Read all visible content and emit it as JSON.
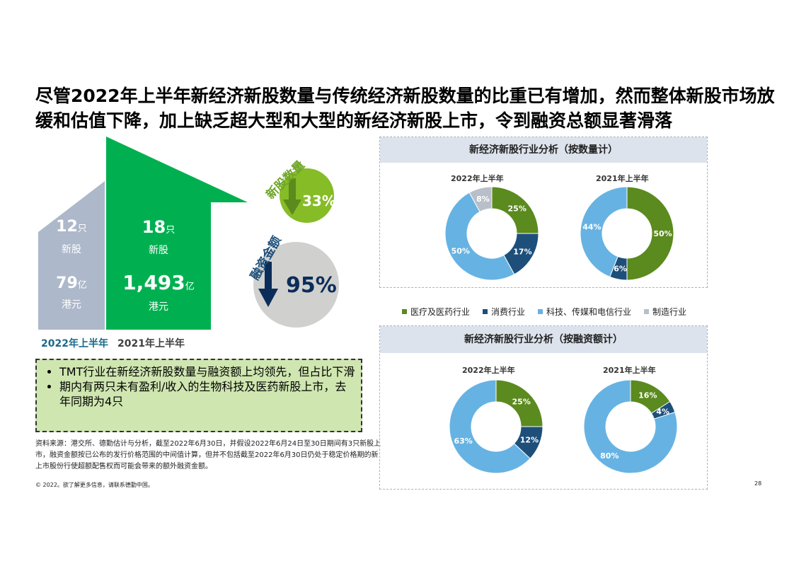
{
  "headline": "尽管2022年上半年新经济新股数量与传统经济新股数量的比重已有增加，然而整体新股市场放缓和估值下降，加上缺乏超大型和大型的新经济新股上市，令到融资总额显著滑落",
  "comparison": {
    "y2022": {
      "label": "2022年上半年",
      "count_num": "12",
      "count_unit": "只",
      "count_label": "新股",
      "amount_num": "79",
      "amount_unit": "亿",
      "amount_label": "港元"
    },
    "y2021": {
      "label": "2021年上半年",
      "count_num": "18",
      "count_unit": "只",
      "count_label": "新股",
      "amount_num": "1,493",
      "amount_unit": "亿",
      "amount_label": "港元"
    }
  },
  "decline": {
    "count_label": "新股数量",
    "count_value": "33%",
    "amount_label": "融资金额",
    "amount_value": "95%"
  },
  "notes": [
    "TMT行业在新经济新股数量与融资额上均领先，但占比下滑",
    "期内有两只未有盈利/收入的生物科技及医药新股上市，去年同期为4只"
  ],
  "source": "资料来源：港交所、德勤估计与分析，截至2022年6月30日，并假设2022年6月24日至30日期间有3只新股上市，融资金额按已公布的发行价格范围的中间值计算，但并不包括截至2022年6月30日仍处于稳定价格期的新上市股份行使超额配售权而可能会带来的额外融资金额。",
  "copyright": "© 2022。欲了解更多信息，请联系德勤中国。",
  "page_number": "28",
  "colors": {
    "healthcare": "#5b8a1e",
    "consumer": "#1d4f7a",
    "tmt": "#66b3e3",
    "manufacturing": "#b9bfc9",
    "green": "#00b050",
    "gray": "#adb8ca",
    "lightgreen": "#86bc25",
    "navy": "#0b2d5a"
  },
  "chart_data": [
    {
      "type": "pie",
      "title": "新经济新股行业分析（按数量计）",
      "subtitle": "2022年上半年",
      "categories": [
        "医疗及医药行业",
        "消费行业",
        "科技、传媒和电信行业",
        "制造行业"
      ],
      "values": [
        25,
        17,
        50,
        8
      ],
      "labels": [
        "25%",
        "17%",
        "50%",
        "8%"
      ]
    },
    {
      "type": "pie",
      "title": "新经济新股行业分析（按数量计）",
      "subtitle": "2021年上半年",
      "categories": [
        "医疗及医药行业",
        "消费行业",
        "科技、传媒和电信行业",
        "制造行业"
      ],
      "values": [
        50,
        6,
        44,
        0
      ],
      "labels": [
        "50%",
        "6%",
        "44%",
        ""
      ]
    },
    {
      "type": "pie",
      "title": "新经济新股行业分析（按融资额计）",
      "subtitle": "2022年上半年",
      "categories": [
        "医疗及医药行业",
        "消费行业",
        "科技、传媒和电信行业",
        "制造行业"
      ],
      "values": [
        25,
        12,
        63,
        0
      ],
      "labels": [
        "25%",
        "12%",
        "63%",
        ""
      ]
    },
    {
      "type": "pie",
      "title": "新经济新股行业分析（按融资额计）",
      "subtitle": "2021年上半年",
      "categories": [
        "医疗及医药行业",
        "消费行业",
        "科技、传媒和电信行业",
        "制造行业"
      ],
      "values": [
        16,
        4,
        80,
        0
      ],
      "labels": [
        "16%",
        "4%",
        "80%",
        ""
      ]
    }
  ],
  "legend": [
    "医疗及医药行业",
    "消费行业",
    "科技、传媒和电信行业",
    "制造行业"
  ]
}
